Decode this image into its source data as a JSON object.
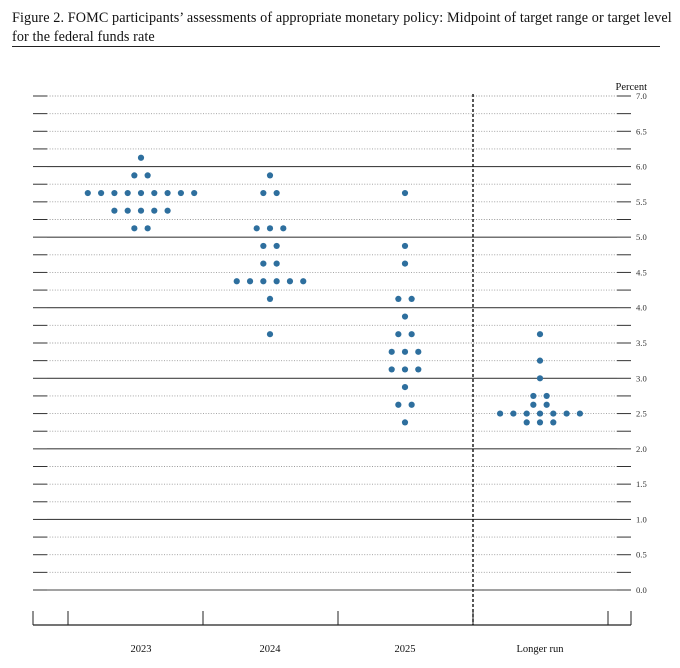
{
  "figure": {
    "title": "Figure 2.  FOMC participants’ assessments of appropriate monetary policy:  Midpoint of target range or target level for the federal funds rate"
  },
  "chart_data": {
    "type": "scatter",
    "title": "Figure 2.  FOMC participants’ assessments of appropriate monetary policy:  Midpoint of target range or target level for the federal funds rate",
    "ylabel": "Percent",
    "ylim": [
      0,
      7
    ],
    "yticks": [
      "0.0",
      "0.5",
      "1.0",
      "1.5",
      "2.0",
      "2.5",
      "3.0",
      "3.5",
      "4.0",
      "4.5",
      "5.0",
      "5.5",
      "6.0",
      "6.5",
      "7.0"
    ],
    "categories": [
      "2023",
      "2024",
      "2025",
      "Longer run"
    ],
    "grid": true,
    "series": [
      {
        "category": "2023",
        "points": [
          {
            "y": 6.125,
            "count": 1
          },
          {
            "y": 5.875,
            "count": 2
          },
          {
            "y": 5.625,
            "count": 9
          },
          {
            "y": 5.375,
            "count": 5
          },
          {
            "y": 5.125,
            "count": 2
          }
        ]
      },
      {
        "category": "2024",
        "points": [
          {
            "y": 5.875,
            "count": 1
          },
          {
            "y": 5.625,
            "count": 2
          },
          {
            "y": 5.125,
            "count": 3
          },
          {
            "y": 4.875,
            "count": 2
          },
          {
            "y": 4.625,
            "count": 2
          },
          {
            "y": 4.375,
            "count": 6
          },
          {
            "y": 4.125,
            "count": 1
          },
          {
            "y": 3.625,
            "count": 1
          }
        ]
      },
      {
        "category": "2025",
        "points": [
          {
            "y": 5.625,
            "count": 1
          },
          {
            "y": 4.875,
            "count": 1
          },
          {
            "y": 4.625,
            "count": 1
          },
          {
            "y": 4.125,
            "count": 2
          },
          {
            "y": 3.875,
            "count": 1
          },
          {
            "y": 3.625,
            "count": 2
          },
          {
            "y": 3.375,
            "count": 3
          },
          {
            "y": 3.125,
            "count": 3
          },
          {
            "y": 2.875,
            "count": 1
          },
          {
            "y": 2.625,
            "count": 2
          },
          {
            "y": 2.375,
            "count": 1
          }
        ]
      },
      {
        "category": "Longer run",
        "points": [
          {
            "y": 3.625,
            "count": 1
          },
          {
            "y": 3.25,
            "count": 1
          },
          {
            "y": 3.0,
            "count": 1
          },
          {
            "y": 2.75,
            "count": 2
          },
          {
            "y": 2.625,
            "count": 2
          },
          {
            "y": 2.5,
            "count": 7
          },
          {
            "y": 2.375,
            "count": 3
          }
        ]
      }
    ],
    "colors": {
      "dot": "#2e6f9e",
      "grid": "#999999",
      "axis": "#222222"
    }
  }
}
